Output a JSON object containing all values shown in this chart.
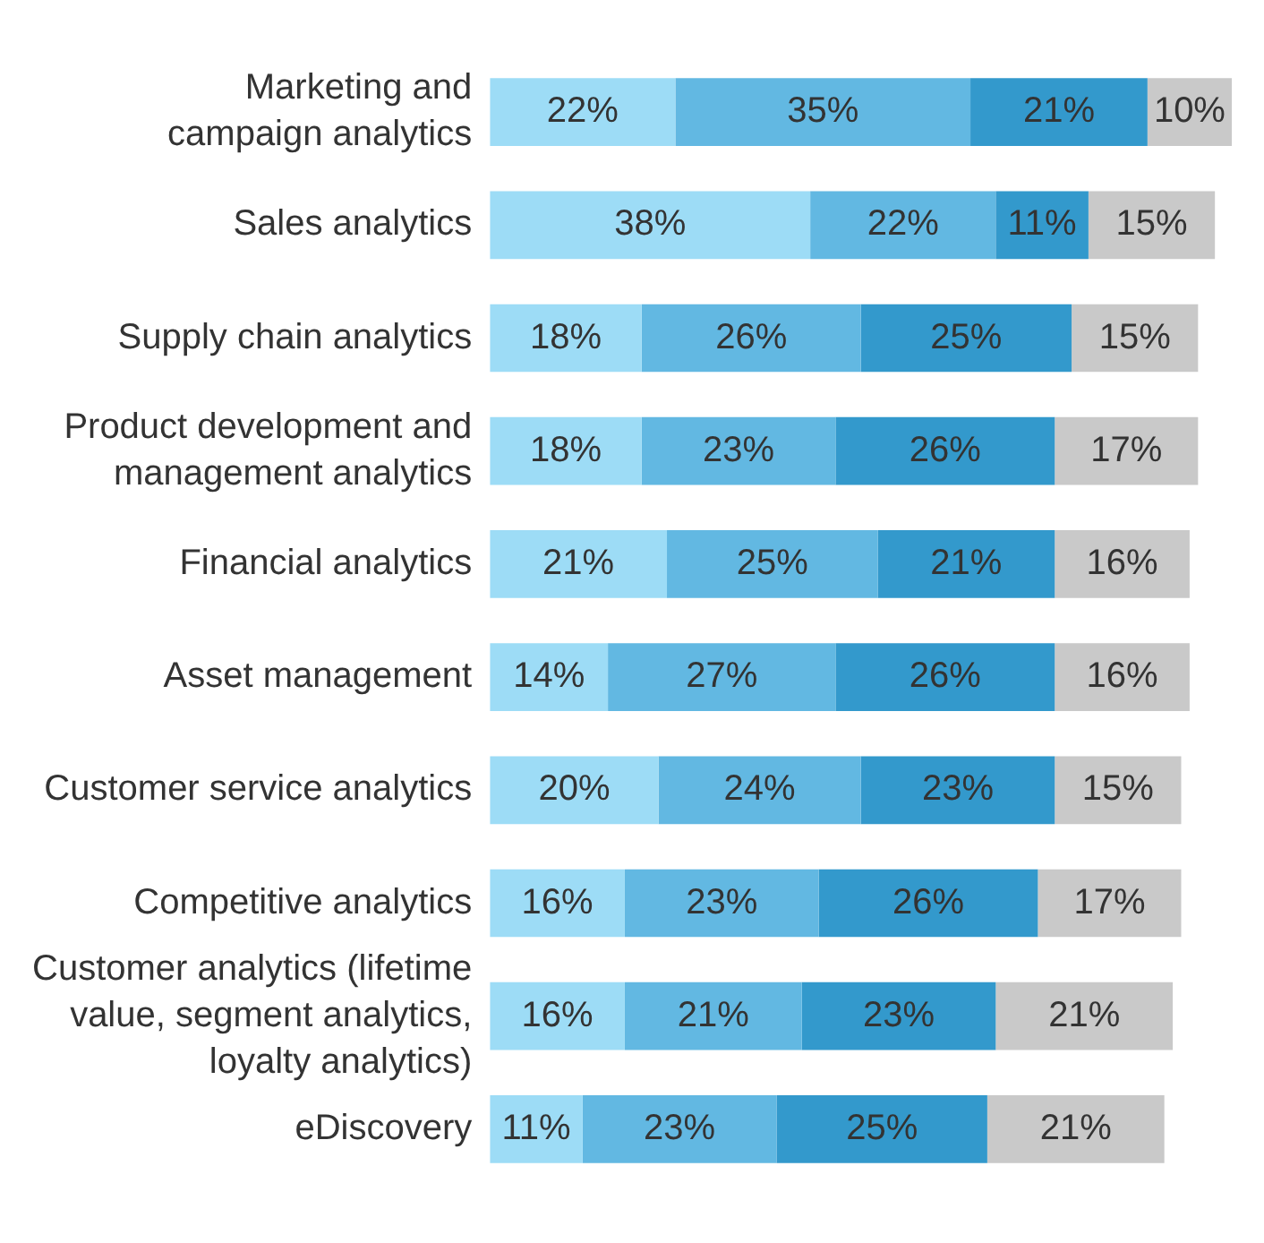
{
  "chart_data": {
    "type": "bar",
    "orientation": "horizontal",
    "stacked": true,
    "grid": false,
    "legend": false,
    "tick_labels": "y",
    "categories": [
      "Marketing and\ncampaign analytics",
      "Sales analytics",
      "Supply chain analytics",
      "Product development and\nmanagement analytics",
      "Financial analytics",
      "Asset management",
      "Customer service analytics",
      "Competitive analytics",
      "Customer analytics (lifetime\nvalue, segment analytics,\nloyalty analytics)",
      "eDiscovery"
    ],
    "series": [
      {
        "color": "#9ddcf6",
        "values": [
          22,
          38,
          18,
          18,
          21,
          14,
          20,
          16,
          16,
          11
        ],
        "value_labels": [
          "22%",
          "38%",
          "18%",
          "18%",
          "21%",
          "14%",
          "20%",
          "16%",
          "16%",
          "11%"
        ]
      },
      {
        "color": "#62b8e2",
        "values": [
          35,
          22,
          26,
          23,
          25,
          27,
          24,
          23,
          21,
          23
        ],
        "value_labels": [
          "35%",
          "22%",
          "26%",
          "23%",
          "25%",
          "27%",
          "24%",
          "23%",
          "21%",
          "23%"
        ]
      },
      {
        "color": "#3399cc",
        "values": [
          21,
          11,
          25,
          26,
          21,
          26,
          23,
          26,
          23,
          25
        ],
        "value_labels": [
          "21%",
          "11%",
          "25%",
          "26%",
          "21%",
          "26%",
          "23%",
          "26%",
          "23%",
          "25%"
        ]
      },
      {
        "color": "#c9c9c9",
        "values": [
          10,
          15,
          15,
          17,
          16,
          16,
          15,
          17,
          21,
          21
        ],
        "value_labels": [
          "10%",
          "15%",
          "15%",
          "17%",
          "16%",
          "16%",
          "15%",
          "17%",
          "21%",
          "21%"
        ]
      }
    ]
  }
}
